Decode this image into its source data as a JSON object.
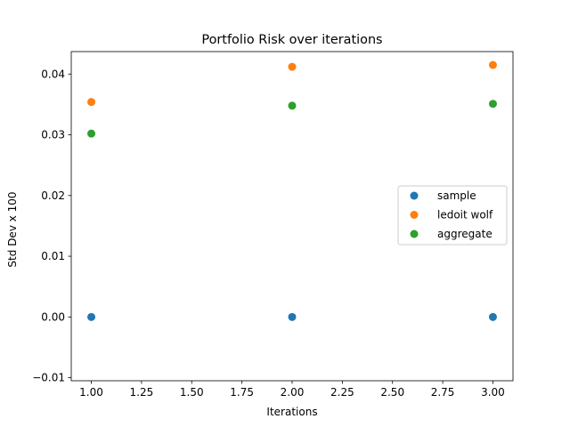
{
  "chart_data": {
    "type": "scatter",
    "title": "Portfolio Risk over iterations",
    "xlabel": "Iterations",
    "ylabel": "Std Dev x 100",
    "xlim": [
      0.9,
      3.1
    ],
    "ylim": [
      -0.0105,
      0.0437
    ],
    "xticks": [
      1.0,
      1.25,
      1.5,
      1.75,
      2.0,
      2.25,
      2.5,
      2.75,
      3.0
    ],
    "xtick_labels": [
      "1.00",
      "1.25",
      "1.50",
      "1.75",
      "2.00",
      "2.25",
      "2.50",
      "2.75",
      "3.00"
    ],
    "yticks": [
      -0.01,
      0.0,
      0.01,
      0.02,
      0.03,
      0.04
    ],
    "ytick_labels": [
      "−0.01",
      "0.00",
      "0.01",
      "0.02",
      "0.03",
      "0.04"
    ],
    "grid": false,
    "legend_position": "center-right",
    "series": [
      {
        "name": "sample",
        "color": "#1f77b4",
        "x": [
          1,
          2,
          3
        ],
        "y": [
          0.0,
          0.0,
          0.0
        ]
      },
      {
        "name": "ledoit wolf",
        "color": "#ff7f0e",
        "x": [
          1,
          2,
          3
        ],
        "y": [
          0.0354,
          0.0412,
          0.0415
        ]
      },
      {
        "name": "aggregate",
        "color": "#2ca02c",
        "x": [
          1,
          2,
          3
        ],
        "y": [
          0.0302,
          0.0348,
          0.0351
        ]
      }
    ]
  }
}
